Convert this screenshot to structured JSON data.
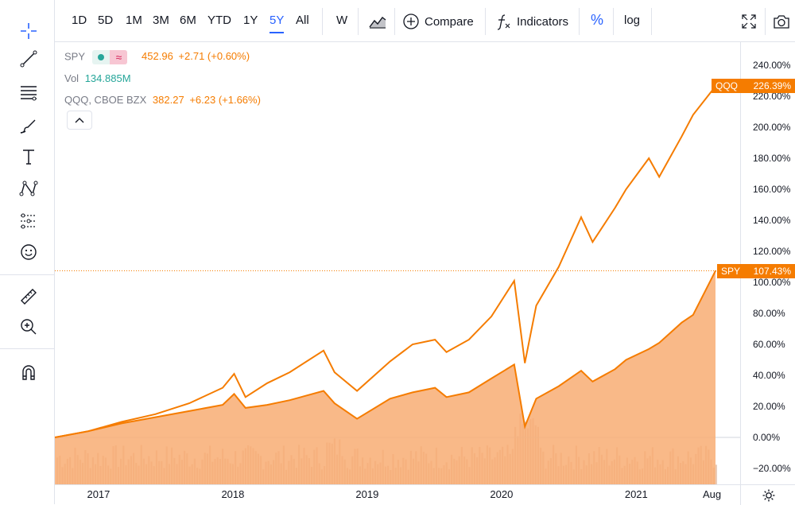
{
  "toolbar": {
    "ranges": [
      "1D",
      "5D",
      "1M",
      "3M",
      "6M",
      "YTD",
      "1Y",
      "5Y",
      "All"
    ],
    "active_range": "5Y",
    "interval": "W",
    "compare_label": "Compare",
    "indicators_label": "Indicators",
    "percent_label": "%",
    "log_label": "log"
  },
  "legend": {
    "primary_symbol": "SPY",
    "primary_price": "452.96",
    "primary_change": "+2.71 (+0.60%)",
    "vol_label": "Vol",
    "vol_value": "134.885M",
    "compare_symbol": "QQQ, CBOE BZX",
    "compare_price": "382.27",
    "compare_change": "+6.23 (+1.66%)"
  },
  "badges": {
    "qqq_name": "QQQ",
    "qqq_value": "226.39%",
    "spy_name": "SPY",
    "spy_value": "107.43%"
  },
  "colors": {
    "series": "#f57c00",
    "area": "#f8ad73",
    "accent": "#2962ff",
    "volume": "#d7a17e"
  },
  "chart_data": {
    "type": "area",
    "x": [
      "2016-09",
      "2016-12",
      "2017-03",
      "2017-06",
      "2017-09",
      "2017-12",
      "2018-01",
      "2018-02",
      "2018-04",
      "2018-06",
      "2018-09",
      "2018-10",
      "2018-12",
      "2019-03",
      "2019-05",
      "2019-07",
      "2019-08",
      "2019-10",
      "2019-12",
      "2020-02",
      "2020-03",
      "2020-04",
      "2020-06",
      "2020-08",
      "2020-09",
      "2020-11",
      "2020-12",
      "2021-02",
      "2021-03",
      "2021-05",
      "2021-06",
      "2021-08"
    ],
    "series": [
      {
        "name": "SPY",
        "values": [
          0,
          4,
          9,
          13,
          17,
          21,
          28,
          19,
          21,
          24,
          30,
          22,
          12,
          25,
          29,
          32,
          26,
          29,
          38,
          47,
          7,
          25,
          33,
          43,
          36,
          44,
          50,
          57,
          61,
          74,
          79,
          107.43
        ]
      },
      {
        "name": "QQQ",
        "values": [
          0,
          4,
          10,
          15,
          22,
          32,
          41,
          26,
          35,
          42,
          56,
          42,
          30,
          49,
          60,
          63,
          55,
          63,
          78,
          101,
          48,
          85,
          110,
          142,
          126,
          148,
          160,
          180,
          168,
          194,
          208,
          226.39
        ]
      }
    ],
    "ylim": [
      -25,
      250
    ],
    "y_ticks": [
      "240.00%",
      "220.00%",
      "200.00%",
      "180.00%",
      "160.00%",
      "140.00%",
      "120.00%",
      "100.00%",
      "80.00%",
      "60.00%",
      "40.00%",
      "20.00%",
      "0.00%",
      "−20.00%"
    ],
    "time_ticks": [
      "2017",
      "2018",
      "2019",
      "2020",
      "2021",
      "Aug"
    ],
    "grid": false,
    "legend_position": "top-left"
  }
}
